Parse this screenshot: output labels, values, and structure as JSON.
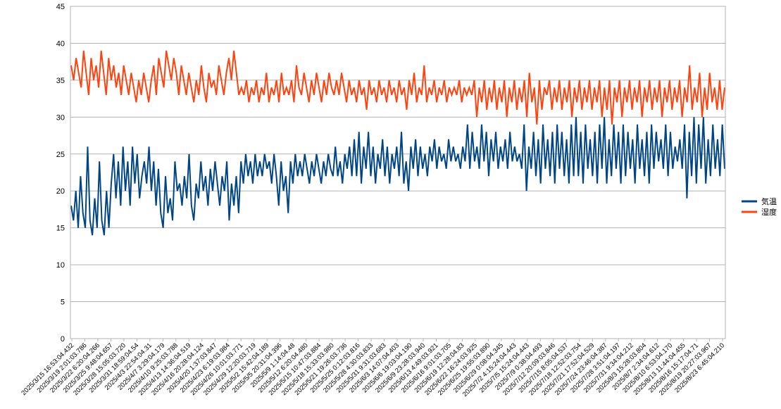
{
  "chart_data": {
    "type": "line",
    "title": "",
    "xlabel": "",
    "ylabel": "",
    "ylim": [
      0,
      45
    ],
    "y_ticks": [
      0,
      5,
      10,
      15,
      20,
      25,
      30,
      35,
      40,
      45
    ],
    "grid": "horizontal",
    "legend_position": "right",
    "x_tick_labels": [
      "2025/3/15 16:53:04.432",
      "2025/3/19 2:01:03.786",
      "2025/3/22 6:20:04.266",
      "2025/3/25 9:48:04.657",
      "2025/3/28 15:05:03.720",
      "2025/3/31 18:59:04.54",
      "2025/4/3 22:54:04.31",
      "2025/4/7 3:29:04.179",
      "2025/4/10 9:25:03.788",
      "2025/4/13 14:36:04.519",
      "2025/4/16 20:28:04.124",
      "2025/4/20 1:37:03.847",
      "2025/4/23 6:19:03.984",
      "2025/4/26 10:01:03.771",
      "2025/4/29 12:20:03.719",
      "2025/5/2 15:42:04.189",
      "2025/5/5 20:31:04.396",
      "2025/5/9 1:14:04.48",
      "2025/5/12 6:20:04.480",
      "2025/5/15 10:47:03.884",
      "2025/5/18 15:33:03.980",
      "2025/5/21 19:26:03.736",
      "2025/5/25 0:12:03.816",
      "2025/5/28 4:30:03.833",
      "2025/5/31 9:31:03.683",
      "2025/6/3 14:07:04.403",
      "2025/6/6 19:03:04.190",
      "2025/6/9 23:28:03.940",
      "2025/6/13 4:49:03.921",
      "2025/6/16 9:01:03.705",
      "2025/6/19 12:28:04.83",
      "2025/6/22 16:24:03.925",
      "2025/6/25 19:55:03.890",
      "2025/6/29 0:08:04.345",
      "2025/7/2 4:15:24:04.443",
      "2025/7/5 15:24:04.443",
      "2025/7/9 0:38:04.493",
      "2025/7/12 20:09:03.846",
      "2025/7/15 8:05:04.537",
      "2025/7/18 12:52:03.754",
      "2025/7/21 17:52:04.529",
      "2025/7/24 23:46:04.387",
      "2025/7/28 3:51:04.197",
      "2025/7/31 9:34:04.212",
      "2025/8/3 15:28:03.804",
      "2025/8/7 2:34:04.612",
      "2025/8/10 6:53:04.170",
      "2025/8/13 11:44:04.455",
      "2025/8/16 15:17:04.71",
      "2025/8/19 20:27:03.967",
      "2025/8/23 6:45:04.210"
    ],
    "series": [
      {
        "name": "気温",
        "color": "#004586",
        "values": [
          18,
          16,
          20,
          15,
          22,
          17,
          15,
          26,
          16,
          14,
          19,
          15,
          24,
          16,
          14,
          20,
          15,
          21,
          25,
          19,
          24,
          18,
          26,
          20,
          24,
          18,
          26,
          21,
          25,
          19,
          22,
          24,
          21,
          26,
          20,
          24,
          18,
          23,
          17,
          15,
          22,
          17,
          19,
          16,
          24,
          20,
          21,
          18,
          22,
          19,
          25,
          18,
          16,
          21,
          19,
          24,
          20,
          22,
          18,
          23,
          20,
          24,
          21,
          18,
          22,
          20,
          24,
          16,
          21,
          18,
          22,
          17,
          24,
          21,
          25,
          22,
          24,
          21,
          25,
          22,
          24,
          22,
          25,
          23,
          24,
          21,
          25,
          22,
          18,
          24,
          20,
          22,
          17,
          24,
          21,
          25,
          22,
          24,
          22,
          25,
          23,
          21,
          24,
          22,
          25,
          23,
          21,
          24,
          22,
          25,
          23,
          22,
          26,
          22,
          24,
          21,
          25,
          23,
          26,
          22,
          27,
          22,
          28,
          21,
          26,
          23,
          28,
          22,
          26,
          21,
          25,
          23,
          27,
          22,
          26,
          21,
          25,
          23,
          26,
          22,
          28,
          21,
          24,
          20,
          26,
          23,
          27,
          22,
          26,
          23,
          25,
          22,
          26,
          24,
          27,
          23,
          26,
          24,
          25,
          23,
          27,
          24,
          26,
          24,
          25,
          23,
          26,
          24,
          29,
          23,
          28,
          24,
          26,
          23,
          29,
          24,
          28,
          22,
          27,
          24,
          28,
          23,
          26,
          24,
          27,
          23,
          28,
          24,
          26,
          24,
          25,
          23,
          29,
          20,
          26,
          23,
          28,
          22,
          27,
          21,
          29,
          23,
          27,
          22,
          28,
          21,
          29,
          23,
          28,
          22,
          27,
          21,
          29,
          22,
          30,
          22,
          28,
          21,
          29,
          23,
          27,
          22,
          28,
          21,
          29,
          23,
          30,
          21,
          27,
          22,
          29,
          23,
          28,
          21,
          29,
          22,
          28,
          23,
          27,
          21,
          29,
          23,
          27,
          22,
          28,
          21,
          29,
          23,
          28,
          24,
          27,
          23,
          29,
          22,
          28,
          23,
          26,
          24,
          27,
          23,
          29,
          19,
          28,
          22,
          30,
          21,
          29,
          23,
          30,
          21,
          27,
          22,
          29,
          23,
          27,
          22,
          29,
          23
        ]
      },
      {
        "name": "湿度",
        "color": "#ff420e",
        "values": [
          37,
          35,
          38,
          36,
          34,
          39,
          36,
          33,
          38,
          35,
          37,
          34,
          39,
          36,
          33,
          38,
          35,
          37,
          34,
          36,
          33,
          37,
          35,
          33,
          36,
          34,
          32,
          35,
          33,
          36,
          34,
          32,
          35,
          37,
          33,
          38,
          36,
          34,
          39,
          37,
          35,
          38,
          36,
          33,
          37,
          35,
          33,
          36,
          34,
          32,
          35,
          33,
          37,
          34,
          32,
          36,
          34,
          35,
          33,
          37,
          35,
          33,
          36,
          38,
          35,
          39,
          36,
          33,
          34,
          33,
          35,
          32,
          34,
          33,
          35,
          32,
          34,
          33,
          36,
          32,
          34,
          33,
          35,
          32,
          36,
          33,
          34,
          33,
          35,
          32,
          37,
          34,
          33,
          36,
          34,
          32,
          35,
          33,
          36,
          34,
          32,
          35,
          33,
          36,
          34,
          33,
          35,
          33,
          36,
          34,
          32,
          35,
          33,
          34,
          32,
          35,
          33,
          34,
          31,
          35,
          33,
          34,
          32,
          35,
          33,
          34,
          32,
          35,
          33,
          34,
          32,
          35,
          33,
          34,
          31,
          35,
          33,
          36,
          32,
          34,
          33,
          37,
          32,
          34,
          33,
          35,
          32,
          34,
          33,
          35,
          32,
          34,
          33,
          34,
          33,
          35,
          32,
          34,
          33,
          34,
          33,
          35,
          30,
          34,
          32,
          35,
          31,
          34,
          32,
          35,
          31,
          34,
          32,
          35,
          30,
          34,
          32,
          35,
          31,
          34,
          32,
          35,
          30,
          36,
          32,
          34,
          29,
          35,
          31,
          34,
          33,
          35,
          31,
          34,
          32,
          35,
          31,
          34,
          32,
          35,
          30,
          34,
          32,
          35,
          31,
          34,
          32,
          35,
          31,
          34,
          32,
          35,
          30,
          34,
          31,
          35,
          29,
          34,
          32,
          35,
          30,
          34,
          32,
          35,
          31,
          34,
          32,
          35,
          30,
          34,
          32,
          35,
          31,
          34,
          32,
          35,
          30,
          34,
          32,
          35,
          31,
          34,
          32,
          35,
          30,
          34,
          32,
          37,
          31,
          34,
          32,
          36,
          30,
          34,
          31,
          36,
          32,
          34,
          31,
          35,
          31,
          34
        ]
      }
    ]
  }
}
